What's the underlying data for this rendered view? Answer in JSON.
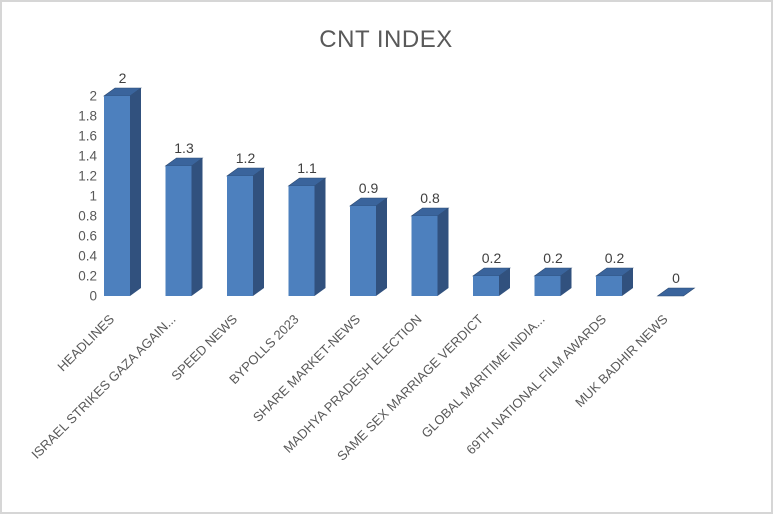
{
  "window": {
    "background": "#ffffff",
    "border_color": "#d6d6d6"
  },
  "chart_data": {
    "type": "bar",
    "variant": "3d-column",
    "title": "CNT INDEX",
    "categories": [
      "HEADLINES",
      "ISRAEL STRIKES GAZA AGAIN...",
      "SPEED NEWS",
      "BYPOLLS 2023",
      "SHARE MARKET-NEWS",
      "MADHYA PRADESH ELECTION",
      "SAME SEX MARRIAGE VERDICT",
      "GLOBAL MARITIME INDIA...",
      "69TH NATIONAL FILM AWARDS",
      "MUK BADHIR NEWS"
    ],
    "values": [
      2,
      1.3,
      1.2,
      1.1,
      0.9,
      0.8,
      0.2,
      0.2,
      0.2,
      0
    ],
    "data_labels": [
      "2",
      "1.3",
      "1.2",
      "1.1",
      "0.9",
      "0.8",
      "0.2",
      "0.2",
      "0.2",
      "0"
    ],
    "yticks": [
      0,
      0.2,
      0.4,
      0.6,
      0.8,
      1,
      1.2,
      1.4,
      1.6,
      1.8,
      2
    ],
    "ytick_labels": [
      "0",
      "0.2",
      "0.4",
      "0.6",
      "0.8",
      "1",
      "1.2",
      "1.4",
      "1.6",
      "1.8",
      "2"
    ],
    "ylim": [
      0,
      2
    ],
    "xlabel": "",
    "ylabel": "",
    "grid": false,
    "legend": "none",
    "category_label_rotation_deg": -45,
    "colors": {
      "bar_front": "#4d80be",
      "bar_side": "#31517e",
      "bar_top": "#3a649c",
      "bar_edge": "#2c4a72",
      "title_text": "#595959",
      "axis_text": "#595959",
      "value_label_text": "#3f3f3f"
    }
  }
}
